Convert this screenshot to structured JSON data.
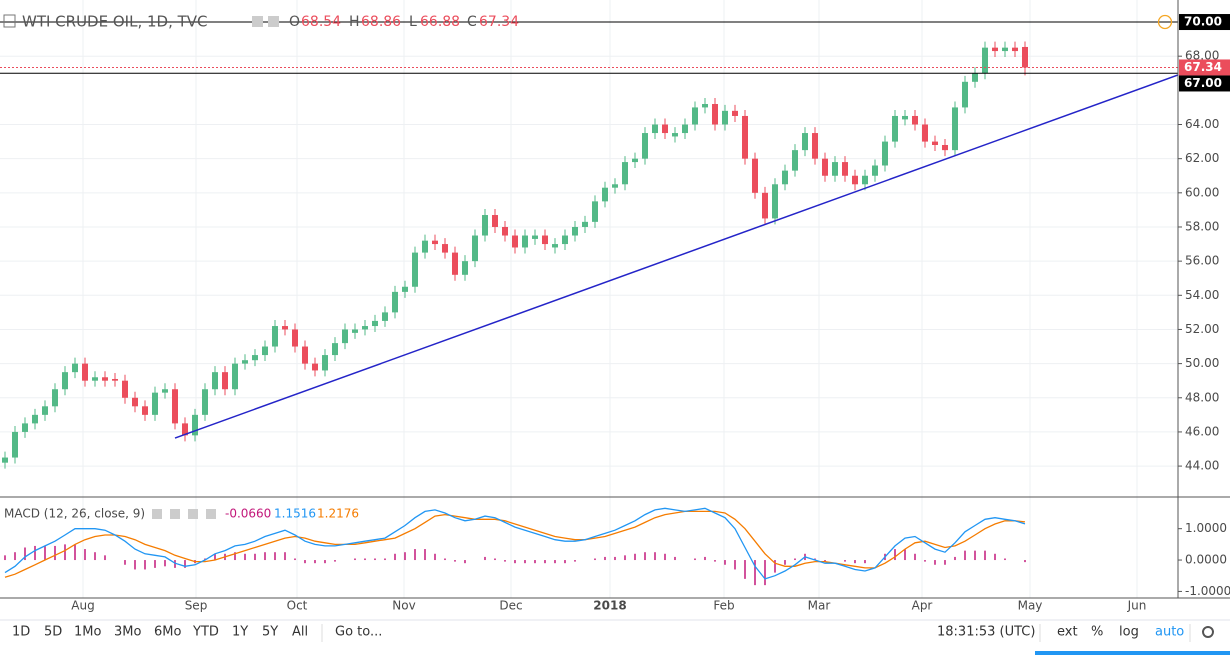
{
  "header": {
    "symbol": "WTI CRUDE OIL, 1D, TVC",
    "ohlc_letters": [
      "O",
      "H",
      "L",
      "C"
    ]
  },
  "toolbar": {
    "ranges": [
      "1D",
      "5D",
      "1Mo",
      "3Mo",
      "6Mo",
      "YTD",
      "1Y",
      "5Y",
      "All"
    ],
    "goto": "Go to...",
    "time": "18:31:53 (UTC)",
    "options": [
      "ext",
      "%",
      "log",
      "auto"
    ]
  },
  "chart_data": [
    {
      "type": "candlestick",
      "xlim": [
        -0.5,
        117.3
      ],
      "xticks": [
        {
          "value": 7.8,
          "label": "Aug"
        },
        {
          "value": 19.1,
          "label": "Sep"
        },
        {
          "value": 29.2,
          "label": "Oct"
        },
        {
          "value": 39.9,
          "label": "Nov"
        },
        {
          "value": 50.6,
          "label": "Dec"
        },
        {
          "value": 60.5,
          "label": "2018"
        },
        {
          "value": 71.9,
          "label": "Feb"
        },
        {
          "value": 81.4,
          "label": "Mar"
        },
        {
          "value": 91.7,
          "label": "Apr"
        },
        {
          "value": 102.5,
          "label": "May"
        },
        {
          "value": 113.2,
          "label": "Jun"
        }
      ],
      "x": [
        0,
        1,
        2,
        3,
        4,
        5,
        6,
        7,
        8,
        9,
        10,
        11,
        12,
        13,
        14,
        15,
        16,
        17,
        18,
        19,
        20,
        21,
        22,
        23,
        24,
        25,
        26,
        27,
        28,
        29,
        30,
        31,
        32,
        33,
        34,
        35,
        36,
        37,
        38,
        39,
        40,
        41,
        42,
        43,
        44,
        45,
        46,
        47,
        48,
        49,
        50,
        51,
        52,
        53,
        54,
        55,
        56,
        57,
        58,
        59,
        60,
        61,
        62,
        63,
        64,
        65,
        66,
        67,
        68,
        69,
        70,
        71,
        72,
        73,
        74,
        75,
        76,
        77,
        78,
        79,
        80,
        81,
        82,
        83,
        84,
        85,
        86,
        87,
        88,
        89,
        90,
        91,
        92,
        93,
        94,
        95,
        96,
        97,
        98,
        99,
        100,
        101,
        102
      ],
      "open": [
        44.2,
        44.5,
        46,
        46.5,
        47,
        47.5,
        48.5,
        49.5,
        50,
        49,
        49.2,
        49.1,
        49,
        48,
        47.5,
        47,
        48.3,
        48.5,
        46.5,
        45.8,
        47,
        48.5,
        49.5,
        48.5,
        50,
        50.2,
        50.5,
        51,
        52.2,
        52,
        51,
        50,
        49.6,
        50.5,
        51.2,
        51.8,
        52,
        52.2,
        52.5,
        53,
        54.2,
        54.5,
        56.5,
        57.2,
        57,
        56.5,
        55.2,
        56,
        57.5,
        58.7,
        58,
        57.5,
        56.8,
        57.3,
        57.5,
        56.8,
        57,
        57.5,
        58,
        58.3,
        59.5,
        60.3,
        60.5,
        61.8,
        62,
        63.5,
        64,
        63.3,
        63.5,
        64,
        65,
        65.2,
        64,
        64.8,
        64.5,
        62,
        60,
        58.5,
        60.5,
        61.3,
        62.5,
        63.5,
        62,
        61,
        61.8,
        61,
        60.5,
        61,
        61.6,
        63,
        64.3,
        64.5,
        64,
        63,
        62.8,
        62.5,
        65,
        66.5,
        67,
        68.5,
        68.3,
        68.5,
        68.54
      ],
      "high": [
        44.85,
        46.35,
        46.85,
        47.35,
        47.85,
        48.85,
        49.85,
        50.35,
        50.35,
        49.55,
        49.55,
        49.45,
        49.35,
        48.35,
        47.85,
        48.65,
        48.85,
        48.85,
        46.85,
        47.35,
        48.85,
        49.85,
        49.85,
        50.35,
        50.55,
        50.85,
        51.35,
        52.55,
        52.55,
        52.35,
        51.35,
        50.35,
        50.85,
        51.55,
        52.35,
        52.35,
        52.55,
        52.85,
        53.35,
        54.55,
        54.85,
        56.85,
        57.55,
        57.55,
        57.35,
        56.85,
        56.35,
        57.85,
        59.05,
        59.05,
        58.35,
        57.85,
        57.85,
        57.85,
        57.85,
        57.35,
        57.85,
        58.35,
        58.65,
        59.85,
        60.65,
        60.85,
        62.15,
        62.35,
        63.85,
        64.35,
        64.35,
        63.85,
        64.35,
        65.35,
        65.55,
        65.55,
        65.15,
        65.15,
        64.85,
        62.35,
        60.35,
        60.85,
        61.65,
        62.85,
        63.85,
        63.85,
        62.35,
        62.15,
        62.15,
        61.35,
        61.35,
        61.95,
        63.35,
        64.85,
        64.85,
        64.85,
        64.35,
        63.35,
        63.15,
        65.35,
        66.85,
        67.35,
        68.85,
        68.85,
        68.85,
        68.85,
        68.86
      ],
      "low": [
        43.85,
        44.15,
        45.65,
        46.15,
        46.65,
        47.15,
        48.15,
        49.15,
        48.65,
        48.65,
        48.65,
        48.65,
        47.65,
        47.15,
        46.65,
        46.65,
        47.95,
        46.15,
        45.45,
        45.45,
        46.65,
        48.15,
        48.15,
        48.15,
        49.65,
        49.85,
        50.15,
        50.65,
        51.65,
        50.65,
        49.65,
        49.25,
        49.25,
        50.15,
        50.85,
        51.45,
        51.65,
        51.85,
        52.15,
        52.65,
        53.85,
        54.15,
        56.15,
        56.65,
        56.15,
        54.85,
        54.85,
        55.65,
        57.15,
        57.65,
        57.15,
        56.45,
        56.45,
        56.95,
        56.65,
        56.45,
        56.65,
        57.15,
        57.65,
        57.95,
        59.15,
        59.95,
        60.15,
        61.45,
        61.65,
        63.15,
        63.15,
        62.95,
        63.15,
        63.65,
        64.65,
        63.65,
        63.65,
        64.15,
        61.65,
        59.65,
        58.15,
        58.15,
        60.15,
        60.95,
        62.15,
        61.65,
        60.65,
        60.65,
        60.65,
        60.15,
        60.15,
        60.65,
        61.25,
        62.65,
        63.95,
        63.65,
        62.65,
        62.45,
        62.15,
        62.15,
        64.65,
        66.15,
        66.65,
        67.95,
        67.95,
        67.95,
        66.88
      ],
      "close": [
        44.5,
        46,
        46.5,
        47,
        47.5,
        48.5,
        49.5,
        50,
        49,
        49.2,
        49,
        49,
        48,
        47.5,
        47,
        48.3,
        48.5,
        46.5,
        45.8,
        47,
        48.5,
        49.5,
        48.5,
        50,
        50.2,
        50.5,
        51,
        52.2,
        52,
        51,
        50,
        49.6,
        50.5,
        51.2,
        52,
        52,
        52.2,
        52.5,
        53,
        54.2,
        54.5,
        56.5,
        57.2,
        57,
        56.5,
        55.2,
        56,
        57.5,
        58.7,
        58,
        57.5,
        56.8,
        57.5,
        57.5,
        57,
        57,
        57.5,
        58,
        58.3,
        59.5,
        60.3,
        60.5,
        61.8,
        62,
        63.5,
        64,
        63.5,
        63.5,
        64,
        65,
        65.2,
        64,
        64.8,
        64.5,
        62,
        60,
        58.5,
        60.5,
        61.3,
        62.5,
        63.5,
        62,
        61,
        61.8,
        61,
        60.5,
        61,
        61.6,
        63,
        64.5,
        64.5,
        64,
        63,
        62.8,
        62.5,
        65,
        66.5,
        67,
        68.5,
        68.3,
        68.5,
        68.3,
        67.34
      ],
      "up_color": "#53b987",
      "down_color": "#eb4d5c",
      "ylim": [
        42.19,
        71.29
      ],
      "yticks": [
        {
          "value": 44,
          "label": "44.00"
        },
        {
          "value": 46,
          "label": "46.00"
        },
        {
          "value": 48,
          "label": "48.00"
        },
        {
          "value": 50,
          "label": "50.00"
        },
        {
          "value": 52,
          "label": "52.00"
        },
        {
          "value": 54,
          "label": "54.00"
        },
        {
          "value": 56,
          "label": "56.00"
        },
        {
          "value": 58,
          "label": "58.00"
        },
        {
          "value": 60,
          "label": "60.00"
        },
        {
          "value": 62,
          "label": "62.00"
        },
        {
          "value": 64,
          "label": "64.00"
        },
        {
          "value": 68,
          "label": "68.00"
        }
      ],
      "grid": true,
      "hlines": [
        {
          "value": 70,
          "label": "70.00",
          "color": "#000000"
        },
        {
          "value": 67,
          "label": "67.00",
          "color": "#000000"
        }
      ],
      "last_price_color": "#eb4d5c",
      "trendline": {
        "x": [
          17,
          117.3
        ],
        "y": [
          45.64,
          66.9
        ],
        "color": "#2424c8"
      }
    },
    {
      "type": "macd",
      "title": "MACD (12, 26, close, 9)",
      "ylim": [
        -1.21,
        2.01
      ],
      "yticks": [
        {
          "value": 1,
          "label": "1.0000"
        },
        {
          "value": 0,
          "label": "0.0000"
        },
        {
          "value": -1,
          "label": "-1.0000"
        }
      ],
      "histogram": {
        "color": "#c2187a",
        "value_label": "-0.0660",
        "values": [
          0.15,
          0.25,
          0.4,
          0.45,
          0.45,
          0.45,
          0.5,
          0.5,
          0.35,
          0.25,
          0.15,
          0.0,
          -0.15,
          -0.3,
          -0.3,
          -0.25,
          -0.2,
          -0.25,
          -0.25,
          -0.1,
          0.05,
          0.2,
          0.2,
          0.25,
          0.2,
          0.2,
          0.25,
          0.25,
          0.25,
          0.05,
          -0.1,
          -0.1,
          -0.1,
          -0.05,
          0.0,
          0.05,
          0.05,
          0.05,
          0.05,
          0.2,
          0.25,
          0.35,
          0.35,
          0.2,
          0.05,
          -0.05,
          -0.1,
          0.0,
          0.1,
          0.05,
          -0.05,
          -0.1,
          -0.1,
          -0.1,
          -0.1,
          -0.1,
          -0.1,
          -0.05,
          0.0,
          0.05,
          0.1,
          0.1,
          0.15,
          0.2,
          0.25,
          0.25,
          0.2,
          0.1,
          0.0,
          0.05,
          0.1,
          -0.05,
          -0.15,
          -0.3,
          -0.6,
          -0.8,
          -0.8,
          -0.4,
          -0.15,
          0.05,
          0.2,
          0.05,
          -0.05,
          0.0,
          -0.05,
          -0.1,
          -0.1,
          0.0,
          0.2,
          0.35,
          0.35,
          0.2,
          -0.05,
          -0.15,
          -0.15,
          0.1,
          0.3,
          0.3,
          0.3,
          0.2,
          0.05,
          0.0,
          -0.066
        ]
      },
      "macd": {
        "color": "#2196f3",
        "values": [
          -0.4,
          -0.2,
          0.1,
          0.3,
          0.45,
          0.6,
          0.8,
          1.0,
          1.0,
          1.0,
          0.95,
          0.8,
          0.6,
          0.35,
          0.2,
          0.15,
          0.1,
          -0.1,
          -0.2,
          -0.15,
          0.0,
          0.2,
          0.3,
          0.45,
          0.5,
          0.6,
          0.75,
          0.85,
          0.95,
          0.8,
          0.6,
          0.5,
          0.45,
          0.45,
          0.5,
          0.55,
          0.6,
          0.65,
          0.7,
          0.9,
          1.1,
          1.35,
          1.55,
          1.6,
          1.5,
          1.35,
          1.25,
          1.3,
          1.4,
          1.35,
          1.2,
          1.05,
          0.95,
          0.85,
          0.75,
          0.65,
          0.6,
          0.6,
          0.65,
          0.75,
          0.85,
          0.95,
          1.1,
          1.25,
          1.45,
          1.6,
          1.65,
          1.6,
          1.55,
          1.6,
          1.65,
          1.5,
          1.35,
          1.0,
          0.4,
          -0.2,
          -0.6,
          -0.5,
          -0.35,
          -0.15,
          0.1,
          0.0,
          -0.1,
          -0.1,
          -0.2,
          -0.3,
          -0.35,
          -0.25,
          0.1,
          0.45,
          0.7,
          0.75,
          0.55,
          0.35,
          0.25,
          0.55,
          0.9,
          1.1,
          1.3,
          1.35,
          1.3,
          1.25,
          1.1516
        ]
      },
      "signal": {
        "color": "#f57c00",
        "values": [
          -0.55,
          -0.45,
          -0.3,
          -0.15,
          0.0,
          0.15,
          0.3,
          0.5,
          0.65,
          0.75,
          0.8,
          0.8,
          0.75,
          0.65,
          0.5,
          0.4,
          0.3,
          0.15,
          0.05,
          -0.05,
          -0.05,
          0.0,
          0.1,
          0.2,
          0.3,
          0.4,
          0.5,
          0.6,
          0.7,
          0.75,
          0.7,
          0.6,
          0.55,
          0.5,
          0.5,
          0.5,
          0.55,
          0.6,
          0.65,
          0.7,
          0.85,
          1.0,
          1.2,
          1.4,
          1.45,
          1.4,
          1.35,
          1.3,
          1.3,
          1.3,
          1.25,
          1.15,
          1.05,
          0.95,
          0.85,
          0.75,
          0.7,
          0.65,
          0.65,
          0.7,
          0.75,
          0.85,
          0.95,
          1.05,
          1.2,
          1.35,
          1.45,
          1.5,
          1.55,
          1.55,
          1.55,
          1.55,
          1.5,
          1.3,
          1.0,
          0.6,
          0.2,
          -0.1,
          -0.2,
          -0.2,
          -0.1,
          -0.05,
          -0.05,
          -0.1,
          -0.15,
          -0.2,
          -0.25,
          -0.25,
          -0.1,
          0.1,
          0.35,
          0.55,
          0.6,
          0.5,
          0.4,
          0.45,
          0.6,
          0.8,
          1.0,
          1.15,
          1.25,
          1.25,
          1.2176
        ]
      }
    }
  ]
}
